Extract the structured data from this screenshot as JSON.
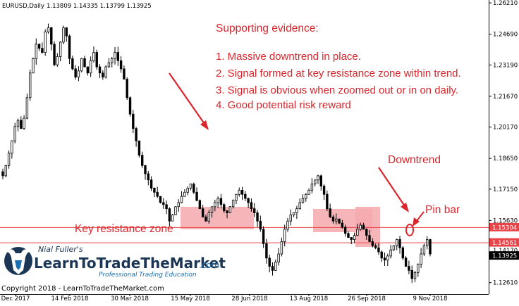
{
  "chart_data": {
    "type": "candlestick",
    "symbol_info": {
      "title": "EURUSD,Daily",
      "ohlc": "1.13809 1.14335 1.13799 1.13925"
    },
    "y_ticks": [
      "1.26210",
      "1.24690",
      "1.23190",
      "1.21670",
      "1.20170",
      "1.18650",
      "1.17150",
      "1.15630",
      "1.12610"
    ],
    "x_ticks": [
      "Dec 2017",
      "14 Feb 2018",
      "30 Mar 2018",
      "15 May 2018",
      "28 Jun 2018",
      "13 Aug 2018",
      "26 Sep 2018",
      "9 Nov 2018"
    ],
    "price_levels": [
      {
        "label": "1.15304",
        "value": 1.15304,
        "color": "#e8454a"
      },
      {
        "label": "1.14561",
        "value": 1.14561,
        "color": "#e8454a"
      },
      {
        "label": "1.13925",
        "value": 1.13925,
        "color": "#000000"
      }
    ],
    "hidden_level_label": "1.14170",
    "ylim": [
      1.1205,
      1.2635
    ],
    "close_series": [
      1.178,
      1.183,
      1.189,
      1.195,
      1.202,
      1.205,
      1.201,
      1.206,
      1.216,
      1.228,
      1.235,
      1.242,
      1.24,
      1.238,
      1.248,
      1.25,
      1.242,
      1.232,
      1.236,
      1.243,
      1.25,
      1.246,
      1.235,
      1.23,
      1.226,
      1.229,
      1.235,
      1.231,
      1.228,
      1.234,
      1.238,
      1.231,
      1.228,
      1.226,
      1.231,
      1.233,
      1.235,
      1.238,
      1.234,
      1.23,
      1.225,
      1.216,
      1.208,
      1.201,
      1.195,
      1.188,
      1.183,
      1.179,
      1.176,
      1.172,
      1.17,
      1.168,
      1.165,
      1.164,
      1.162,
      1.156,
      1.159,
      1.163,
      1.165,
      1.168,
      1.17,
      1.172,
      1.174,
      1.17,
      1.166,
      1.162,
      1.158,
      1.156,
      1.16,
      1.163,
      1.165,
      1.167,
      1.164,
      1.161,
      1.16,
      1.163,
      1.166,
      1.169,
      1.171,
      1.169,
      1.167,
      1.165,
      1.162,
      1.16,
      1.156,
      1.152,
      1.145,
      1.138,
      1.134,
      1.132,
      1.136,
      1.14,
      1.146,
      1.152,
      1.156,
      1.159,
      1.16,
      1.162,
      1.165,
      1.167,
      1.169,
      1.171,
      1.174,
      1.176,
      1.178,
      1.173,
      1.169,
      1.162,
      1.158,
      1.156,
      1.157,
      1.155,
      1.153,
      1.15,
      1.148,
      1.147,
      1.149,
      1.152,
      1.154,
      1.152,
      1.149,
      1.146,
      1.144,
      1.143,
      1.141,
      1.138,
      1.137,
      1.139,
      1.142,
      1.144,
      1.147,
      1.143,
      1.138,
      1.134,
      1.132,
      1.128,
      1.131,
      1.135,
      1.14,
      1.144,
      1.147,
      1.14
    ],
    "annotations": {
      "supporting_title": "Supporting evidence:",
      "points": [
        "1. Massive downtrend in place.",
        "2. Signal formed at key resistance zone within trend.",
        "3. Signal is obvious when zoomed out or in on daily.",
        "4. Good potential risk reward"
      ],
      "downtrend": "Downtrend",
      "pin_bar": "Pin bar",
      "key_resistance": "Key resistance zone"
    }
  },
  "branding": {
    "author": "Nial Fuller's",
    "brand_main": "LearnToTradeTheMarket",
    "brand_suffix": ".com",
    "tagline": "Professional Trading Education",
    "copyright": "Copyright 2018 - LearnToTradeTheMarket.com"
  },
  "colors": {
    "annotation_red": "#d9262c",
    "zone_fill": "#f4a9ad",
    "level_line": "#e8454a",
    "brand_blue": "#1a6fb0",
    "brand_navy": "#1b3655"
  }
}
